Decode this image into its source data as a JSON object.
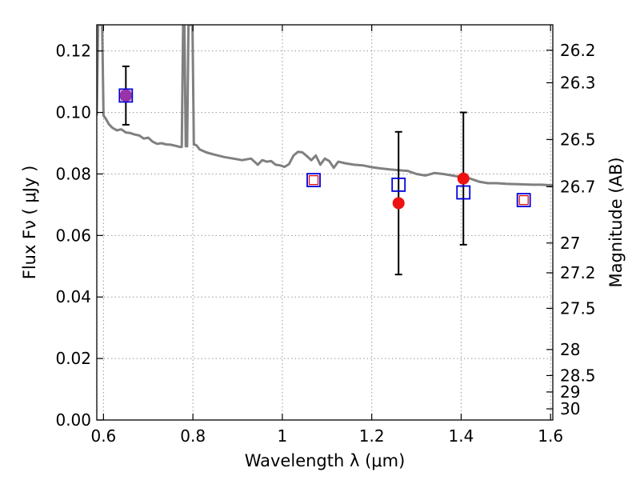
{
  "chart_data": {
    "type": "scatter",
    "xlabel": "Wavelength  λ (μm)",
    "ylabel": "Flux  Fν  ( μJy )",
    "y2label": "Magnitude (AB)",
    "xlim": [
      0.585,
      1.605
    ],
    "ylim": [
      0.0,
      0.1285
    ],
    "grid": true,
    "x_ticks": [
      0.6,
      0.8,
      1.0,
      1.2,
      1.4,
      1.6
    ],
    "x_tick_labels": [
      "0.6",
      "0.8",
      "1",
      "1.2",
      "1.4",
      "1.6"
    ],
    "y_ticks": [
      0.0,
      0.02,
      0.04,
      0.06,
      0.08,
      0.1,
      0.12
    ],
    "y_tick_labels": [
      "0.00",
      "0.02",
      "0.04",
      "0.06",
      "0.08",
      "0.10",
      "0.12"
    ],
    "y2_ticks": [
      26.2,
      26.3,
      26.5,
      26.7,
      27,
      27.2,
      27.5,
      28,
      28.5,
      29,
      30
    ],
    "y2_tick_labels": [
      "26.2",
      "26.3",
      "26.5",
      "26.7",
      "27",
      "27.2",
      "27.5",
      "28",
      "28.5",
      "29",
      "30"
    ],
    "series": [
      {
        "kind": "line",
        "color": "#808080",
        "x": [
          0.585,
          0.588,
          0.591,
          0.594,
          0.597,
          0.6,
          0.605,
          0.612,
          0.62,
          0.63,
          0.64,
          0.65,
          0.66,
          0.67,
          0.68,
          0.69,
          0.7,
          0.71,
          0.72,
          0.73,
          0.74,
          0.75,
          0.76,
          0.77,
          0.775,
          0.778,
          0.781,
          0.784,
          0.787,
          0.79,
          0.793,
          0.796,
          0.799,
          0.802,
          0.805,
          0.808,
          0.815,
          0.83,
          0.85,
          0.87,
          0.89,
          0.91,
          0.93,
          0.945,
          0.955,
          0.965,
          0.975,
          0.985,
          0.995,
          1.005,
          1.015,
          1.025,
          1.035,
          1.045,
          1.055,
          1.065,
          1.075,
          1.085,
          1.095,
          1.105,
          1.115,
          1.125,
          1.14,
          1.16,
          1.18,
          1.2,
          1.22,
          1.24,
          1.26,
          1.28,
          1.3,
          1.32,
          1.34,
          1.36,
          1.38,
          1.4,
          1.42,
          1.44,
          1.46,
          1.48,
          1.5,
          1.52,
          1.54,
          1.56,
          1.58,
          1.605
        ],
        "y": [
          0.099,
          0.1285,
          0.1285,
          0.1285,
          0.1285,
          0.099,
          0.098,
          0.0962,
          0.095,
          0.0942,
          0.0945,
          0.0935,
          0.0933,
          0.0928,
          0.0925,
          0.0915,
          0.0918,
          0.0905,
          0.0898,
          0.09,
          0.0896,
          0.0895,
          0.0892,
          0.0888,
          0.0888,
          0.1285,
          0.1285,
          0.089,
          0.089,
          0.1285,
          0.1285,
          0.1285,
          0.1285,
          0.0895,
          0.0895,
          0.0893,
          0.088,
          0.087,
          0.0862,
          0.0855,
          0.085,
          0.0845,
          0.085,
          0.083,
          0.0845,
          0.084,
          0.0842,
          0.083,
          0.0828,
          0.0823,
          0.0832,
          0.086,
          0.0872,
          0.087,
          0.0858,
          0.0845,
          0.086,
          0.083,
          0.085,
          0.0842,
          0.082,
          0.084,
          0.0835,
          0.083,
          0.0828,
          0.0822,
          0.0818,
          0.0815,
          0.0812,
          0.081,
          0.08,
          0.0795,
          0.0803,
          0.08,
          0.0795,
          0.079,
          0.0785,
          0.0775,
          0.077,
          0.077,
          0.0768,
          0.0767,
          0.0766,
          0.0765,
          0.0765,
          0.0763
        ]
      },
      {
        "kind": "errorbar",
        "color": "#000000",
        "points": [
          {
            "x": 0.65,
            "y": 0.1055,
            "yerr": 0.0095
          },
          {
            "x": 1.26,
            "y": 0.0705,
            "yerr": 0.0232
          },
          {
            "x": 1.405,
            "y": 0.0785,
            "yerr": 0.0215
          }
        ]
      },
      {
        "kind": "scatter",
        "marker": "circle",
        "color": "#ee1111",
        "x": [
          0.65,
          1.26,
          1.405
        ],
        "y": [
          0.1055,
          0.0705,
          0.0785
        ]
      },
      {
        "kind": "scatter",
        "marker": "square",
        "color": "#0000dd",
        "x": [
          0.65,
          1.07,
          1.26,
          1.405,
          1.54
        ],
        "y": [
          0.1055,
          0.078,
          0.0765,
          0.074,
          0.0715
        ]
      },
      {
        "kind": "scatter",
        "marker": "square",
        "color": "#dd0000",
        "x": [
          0.65,
          1.07,
          1.54
        ],
        "y": [
          0.1055,
          0.078,
          0.0715
        ]
      },
      {
        "kind": "scatter",
        "marker": "circle",
        "color": "#9933aa",
        "x": [
          0.65
        ],
        "y": [
          0.1055
        ]
      }
    ]
  }
}
